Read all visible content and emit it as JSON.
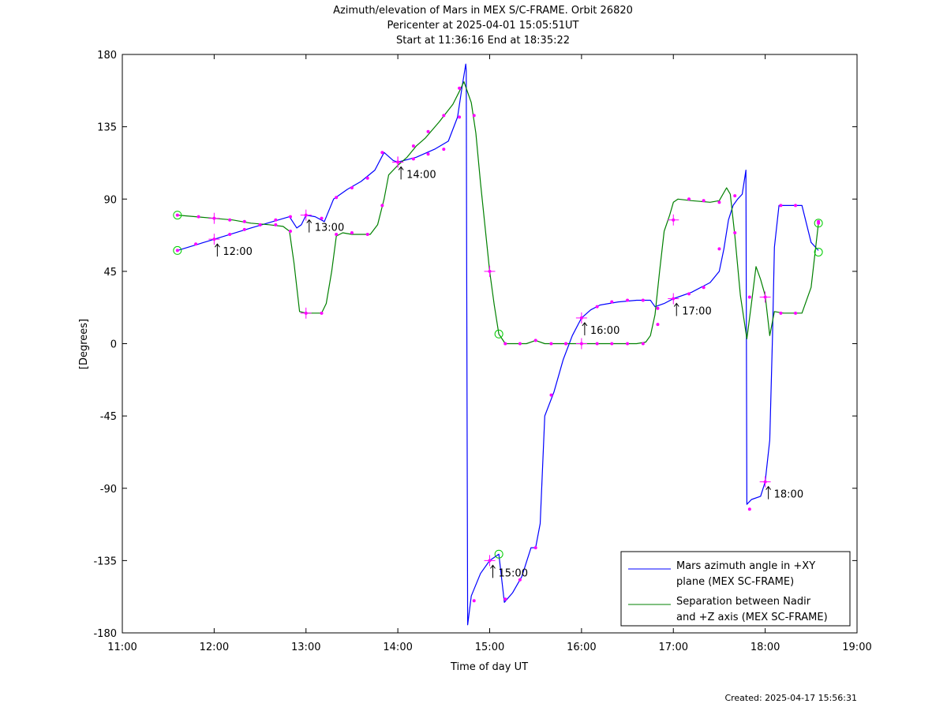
{
  "chart_data": {
    "type": "line",
    "title_lines": [
      "Azimuth/elevation of Mars in MEX S/C-FRAME.  Orbit 26820",
      "Pericenter at 2025-04-01 15:05:51UT",
      "Start at 11:36:16 End at 18:35:22"
    ],
    "xlabel": "Time of day UT",
    "ylabel": "[Degrees]",
    "xlim": [
      11,
      19
    ],
    "ylim": [
      -180,
      180
    ],
    "x_ticks": [
      11,
      12,
      13,
      14,
      15,
      16,
      17,
      18,
      19
    ],
    "x_tick_labels": [
      "11:00",
      "12:00",
      "13:00",
      "14:00",
      "15:00",
      "16:00",
      "17:00",
      "18:00",
      "19:00"
    ],
    "y_ticks": [
      180,
      135,
      90,
      45,
      0,
      -45,
      -90,
      -135,
      -180
    ],
    "y_tick_labels": [
      "180",
      "135",
      "90",
      "45",
      "0",
      "-45",
      "-90",
      "-135",
      "-180"
    ],
    "grid": false,
    "legend_position": "bottom-right",
    "series": [
      {
        "name": "Mars azimuth angle in +XY plane (MEX SC-FRAME)",
        "legend_lines": [
          "Mars azimuth angle in +XY",
          "plane (MEX SC-FRAME)"
        ],
        "color": "#0000ff",
        "points": [
          [
            11.6,
            58
          ],
          [
            12.0,
            65
          ],
          [
            12.4,
            72
          ],
          [
            12.7,
            77
          ],
          [
            12.82,
            79
          ],
          [
            12.9,
            72
          ],
          [
            12.95,
            74
          ],
          [
            13.0,
            80
          ],
          [
            13.1,
            79
          ],
          [
            13.2,
            76
          ],
          [
            13.3,
            90
          ],
          [
            13.45,
            96
          ],
          [
            13.6,
            101
          ],
          [
            13.75,
            108
          ],
          [
            13.85,
            119
          ],
          [
            13.95,
            114
          ],
          [
            14.0,
            113
          ],
          [
            14.2,
            116
          ],
          [
            14.4,
            121
          ],
          [
            14.55,
            126
          ],
          [
            14.65,
            141
          ],
          [
            14.7,
            160
          ],
          [
            14.74,
            174
          ],
          [
            14.745,
            170
          ],
          [
            14.75,
            40
          ],
          [
            14.76,
            -175
          ],
          [
            14.8,
            -157
          ],
          [
            14.9,
            -143
          ],
          [
            15.0,
            -135
          ],
          [
            15.1,
            -131
          ],
          [
            15.16,
            -161
          ],
          [
            15.25,
            -155
          ],
          [
            15.35,
            -145
          ],
          [
            15.45,
            -127
          ],
          [
            15.5,
            -127
          ],
          [
            15.55,
            -112
          ],
          [
            15.6,
            -45
          ],
          [
            15.7,
            -30
          ],
          [
            15.8,
            -10
          ],
          [
            15.9,
            5
          ],
          [
            16.0,
            16
          ],
          [
            16.1,
            21
          ],
          [
            16.2,
            24
          ],
          [
            16.4,
            26
          ],
          [
            16.6,
            27
          ],
          [
            16.75,
            27
          ],
          [
            16.8,
            23
          ],
          [
            16.9,
            25
          ],
          [
            17.0,
            28
          ],
          [
            17.2,
            32
          ],
          [
            17.4,
            38
          ],
          [
            17.5,
            45
          ],
          [
            17.55,
            59
          ],
          [
            17.6,
            77
          ],
          [
            17.65,
            86
          ],
          [
            17.7,
            90
          ],
          [
            17.75,
            93
          ],
          [
            17.79,
            108
          ],
          [
            17.8,
            -100
          ],
          [
            17.85,
            -97
          ],
          [
            17.95,
            -95
          ],
          [
            18.0,
            -86
          ],
          [
            18.05,
            -60
          ],
          [
            18.08,
            5
          ],
          [
            18.1,
            60
          ],
          [
            18.15,
            86
          ],
          [
            18.3,
            86
          ],
          [
            18.4,
            86
          ],
          [
            18.5,
            63
          ],
          [
            18.58,
            58
          ]
        ],
        "markers": [
          [
            11.6,
            58
          ],
          [
            11.8,
            62
          ],
          [
            12.0,
            65
          ],
          [
            12.17,
            68
          ],
          [
            12.33,
            71
          ],
          [
            12.5,
            74
          ],
          [
            12.67,
            77
          ],
          [
            12.83,
            79
          ],
          [
            13.0,
            80
          ],
          [
            13.17,
            78
          ],
          [
            13.33,
            91
          ],
          [
            13.5,
            97
          ],
          [
            13.67,
            103
          ],
          [
            13.83,
            119
          ],
          [
            14.0,
            113
          ],
          [
            14.17,
            115
          ],
          [
            14.33,
            118
          ],
          [
            14.5,
            121
          ],
          [
            14.67,
            141
          ],
          [
            14.83,
            -160
          ],
          [
            15.0,
            -135
          ],
          [
            15.17,
            -159
          ],
          [
            15.33,
            -147
          ],
          [
            15.5,
            -127
          ],
          [
            15.67,
            -32
          ],
          [
            15.83,
            0
          ],
          [
            16.0,
            16
          ],
          [
            16.17,
            23
          ],
          [
            16.33,
            26
          ],
          [
            16.5,
            27
          ],
          [
            16.67,
            27
          ],
          [
            16.83,
            22
          ],
          [
            17.0,
            28
          ],
          [
            17.17,
            31
          ],
          [
            17.33,
            35
          ],
          [
            17.5,
            59
          ],
          [
            17.67,
            92
          ],
          [
            17.83,
            -103
          ],
          [
            18.0,
            -86
          ],
          [
            18.17,
            86
          ],
          [
            18.33,
            86
          ],
          [
            18.58,
            76
          ]
        ]
      },
      {
        "name": "Separation between Nadir and +Z axis (MEX SC-FRAME)",
        "legend_lines": [
          "Separation between Nadir",
          "and +Z axis (MEX SC-FRAME)"
        ],
        "color": "#008000",
        "points": [
          [
            11.6,
            80
          ],
          [
            11.8,
            79
          ],
          [
            12.0,
            78
          ],
          [
            12.2,
            77
          ],
          [
            12.4,
            75
          ],
          [
            12.6,
            74
          ],
          [
            12.75,
            73
          ],
          [
            12.82,
            70
          ],
          [
            12.87,
            50
          ],
          [
            12.93,
            20
          ],
          [
            13.0,
            19
          ],
          [
            13.17,
            19
          ],
          [
            13.22,
            25
          ],
          [
            13.28,
            45
          ],
          [
            13.33,
            67
          ],
          [
            13.4,
            69
          ],
          [
            13.5,
            68
          ],
          [
            13.7,
            68
          ],
          [
            13.78,
            74
          ],
          [
            13.85,
            90
          ],
          [
            13.9,
            105
          ],
          [
            14.0,
            111
          ],
          [
            14.1,
            116
          ],
          [
            14.2,
            123
          ],
          [
            14.3,
            128
          ],
          [
            14.45,
            138
          ],
          [
            14.6,
            149
          ],
          [
            14.67,
            157
          ],
          [
            14.72,
            163
          ],
          [
            14.8,
            150
          ],
          [
            14.85,
            131
          ],
          [
            14.9,
            100
          ],
          [
            15.0,
            45
          ],
          [
            15.05,
            24
          ],
          [
            15.1,
            6
          ],
          [
            15.17,
            0
          ],
          [
            15.3,
            0
          ],
          [
            15.4,
            0
          ],
          [
            15.5,
            2
          ],
          [
            15.6,
            0
          ],
          [
            15.8,
            0
          ],
          [
            16.2,
            0
          ],
          [
            16.6,
            0
          ],
          [
            16.7,
            1
          ],
          [
            16.75,
            5
          ],
          [
            16.8,
            18
          ],
          [
            16.85,
            45
          ],
          [
            16.9,
            70
          ],
          [
            16.96,
            80
          ],
          [
            17.0,
            88
          ],
          [
            17.05,
            90
          ],
          [
            17.2,
            89
          ],
          [
            17.4,
            88
          ],
          [
            17.5,
            89
          ],
          [
            17.58,
            97
          ],
          [
            17.62,
            93
          ],
          [
            17.67,
            67
          ],
          [
            17.73,
            30
          ],
          [
            17.8,
            3
          ],
          [
            17.85,
            25
          ],
          [
            17.9,
            48
          ],
          [
            17.95,
            40
          ],
          [
            18.0,
            30
          ],
          [
            18.05,
            5
          ],
          [
            18.1,
            20
          ],
          [
            18.2,
            19
          ],
          [
            18.3,
            19
          ],
          [
            18.4,
            19
          ],
          [
            18.5,
            35
          ],
          [
            18.58,
            75
          ]
        ],
        "markers": [
          [
            11.6,
            80
          ],
          [
            11.83,
            79
          ],
          [
            12.0,
            78
          ],
          [
            12.17,
            77
          ],
          [
            12.33,
            76
          ],
          [
            12.5,
            74
          ],
          [
            12.67,
            74
          ],
          [
            12.83,
            70
          ],
          [
            13.0,
            19
          ],
          [
            13.17,
            19
          ],
          [
            13.33,
            68
          ],
          [
            13.5,
            69
          ],
          [
            13.67,
            68
          ],
          [
            13.83,
            86
          ],
          [
            14.0,
            113
          ],
          [
            14.17,
            123
          ],
          [
            14.33,
            132
          ],
          [
            14.5,
            142
          ],
          [
            14.67,
            159
          ],
          [
            14.83,
            142
          ],
          [
            15.0,
            45
          ],
          [
            15.17,
            0
          ],
          [
            15.33,
            0
          ],
          [
            15.5,
            2
          ],
          [
            15.67,
            0
          ],
          [
            15.83,
            0
          ],
          [
            16.0,
            0
          ],
          [
            16.17,
            0
          ],
          [
            16.33,
            0
          ],
          [
            16.5,
            0
          ],
          [
            16.67,
            0
          ],
          [
            16.83,
            12
          ],
          [
            17.0,
            77
          ],
          [
            17.17,
            90
          ],
          [
            17.33,
            89
          ],
          [
            17.5,
            88
          ],
          [
            17.67,
            69
          ],
          [
            17.83,
            29
          ],
          [
            18.0,
            29
          ],
          [
            18.17,
            19
          ],
          [
            18.33,
            19
          ],
          [
            18.58,
            75
          ]
        ]
      }
    ],
    "hour_marks": [
      {
        "label": "12:00",
        "x": 12.0,
        "y": 65
      },
      {
        "label": "13:00",
        "x": 13.0,
        "y": 80
      },
      {
        "label": "14:00",
        "x": 14.0,
        "y": 113
      },
      {
        "label": "15:00",
        "x": 15.0,
        "y": -135
      },
      {
        "label": "16:00",
        "x": 16.0,
        "y": 16
      },
      {
        "label": "17:00",
        "x": 17.0,
        "y": 28
      },
      {
        "label": "18:00",
        "x": 18.0,
        "y": -86
      }
    ],
    "extra_crosses": [
      [
        12.0,
        78
      ],
      [
        13.0,
        19
      ],
      [
        14.0,
        113
      ],
      [
        15.0,
        45
      ],
      [
        16.0,
        0
      ],
      [
        17.0,
        77
      ],
      [
        18.0,
        29
      ]
    ],
    "start_end_circles": [
      [
        11.6,
        80
      ],
      [
        11.6,
        58
      ],
      [
        15.1,
        6
      ],
      [
        15.1,
        -131
      ],
      [
        18.58,
        75
      ],
      [
        18.58,
        57
      ]
    ],
    "marker_color": "#ff00ff",
    "circle_color": "#00cc00"
  },
  "footer": "Created: 2025-04-17 15:56:31"
}
